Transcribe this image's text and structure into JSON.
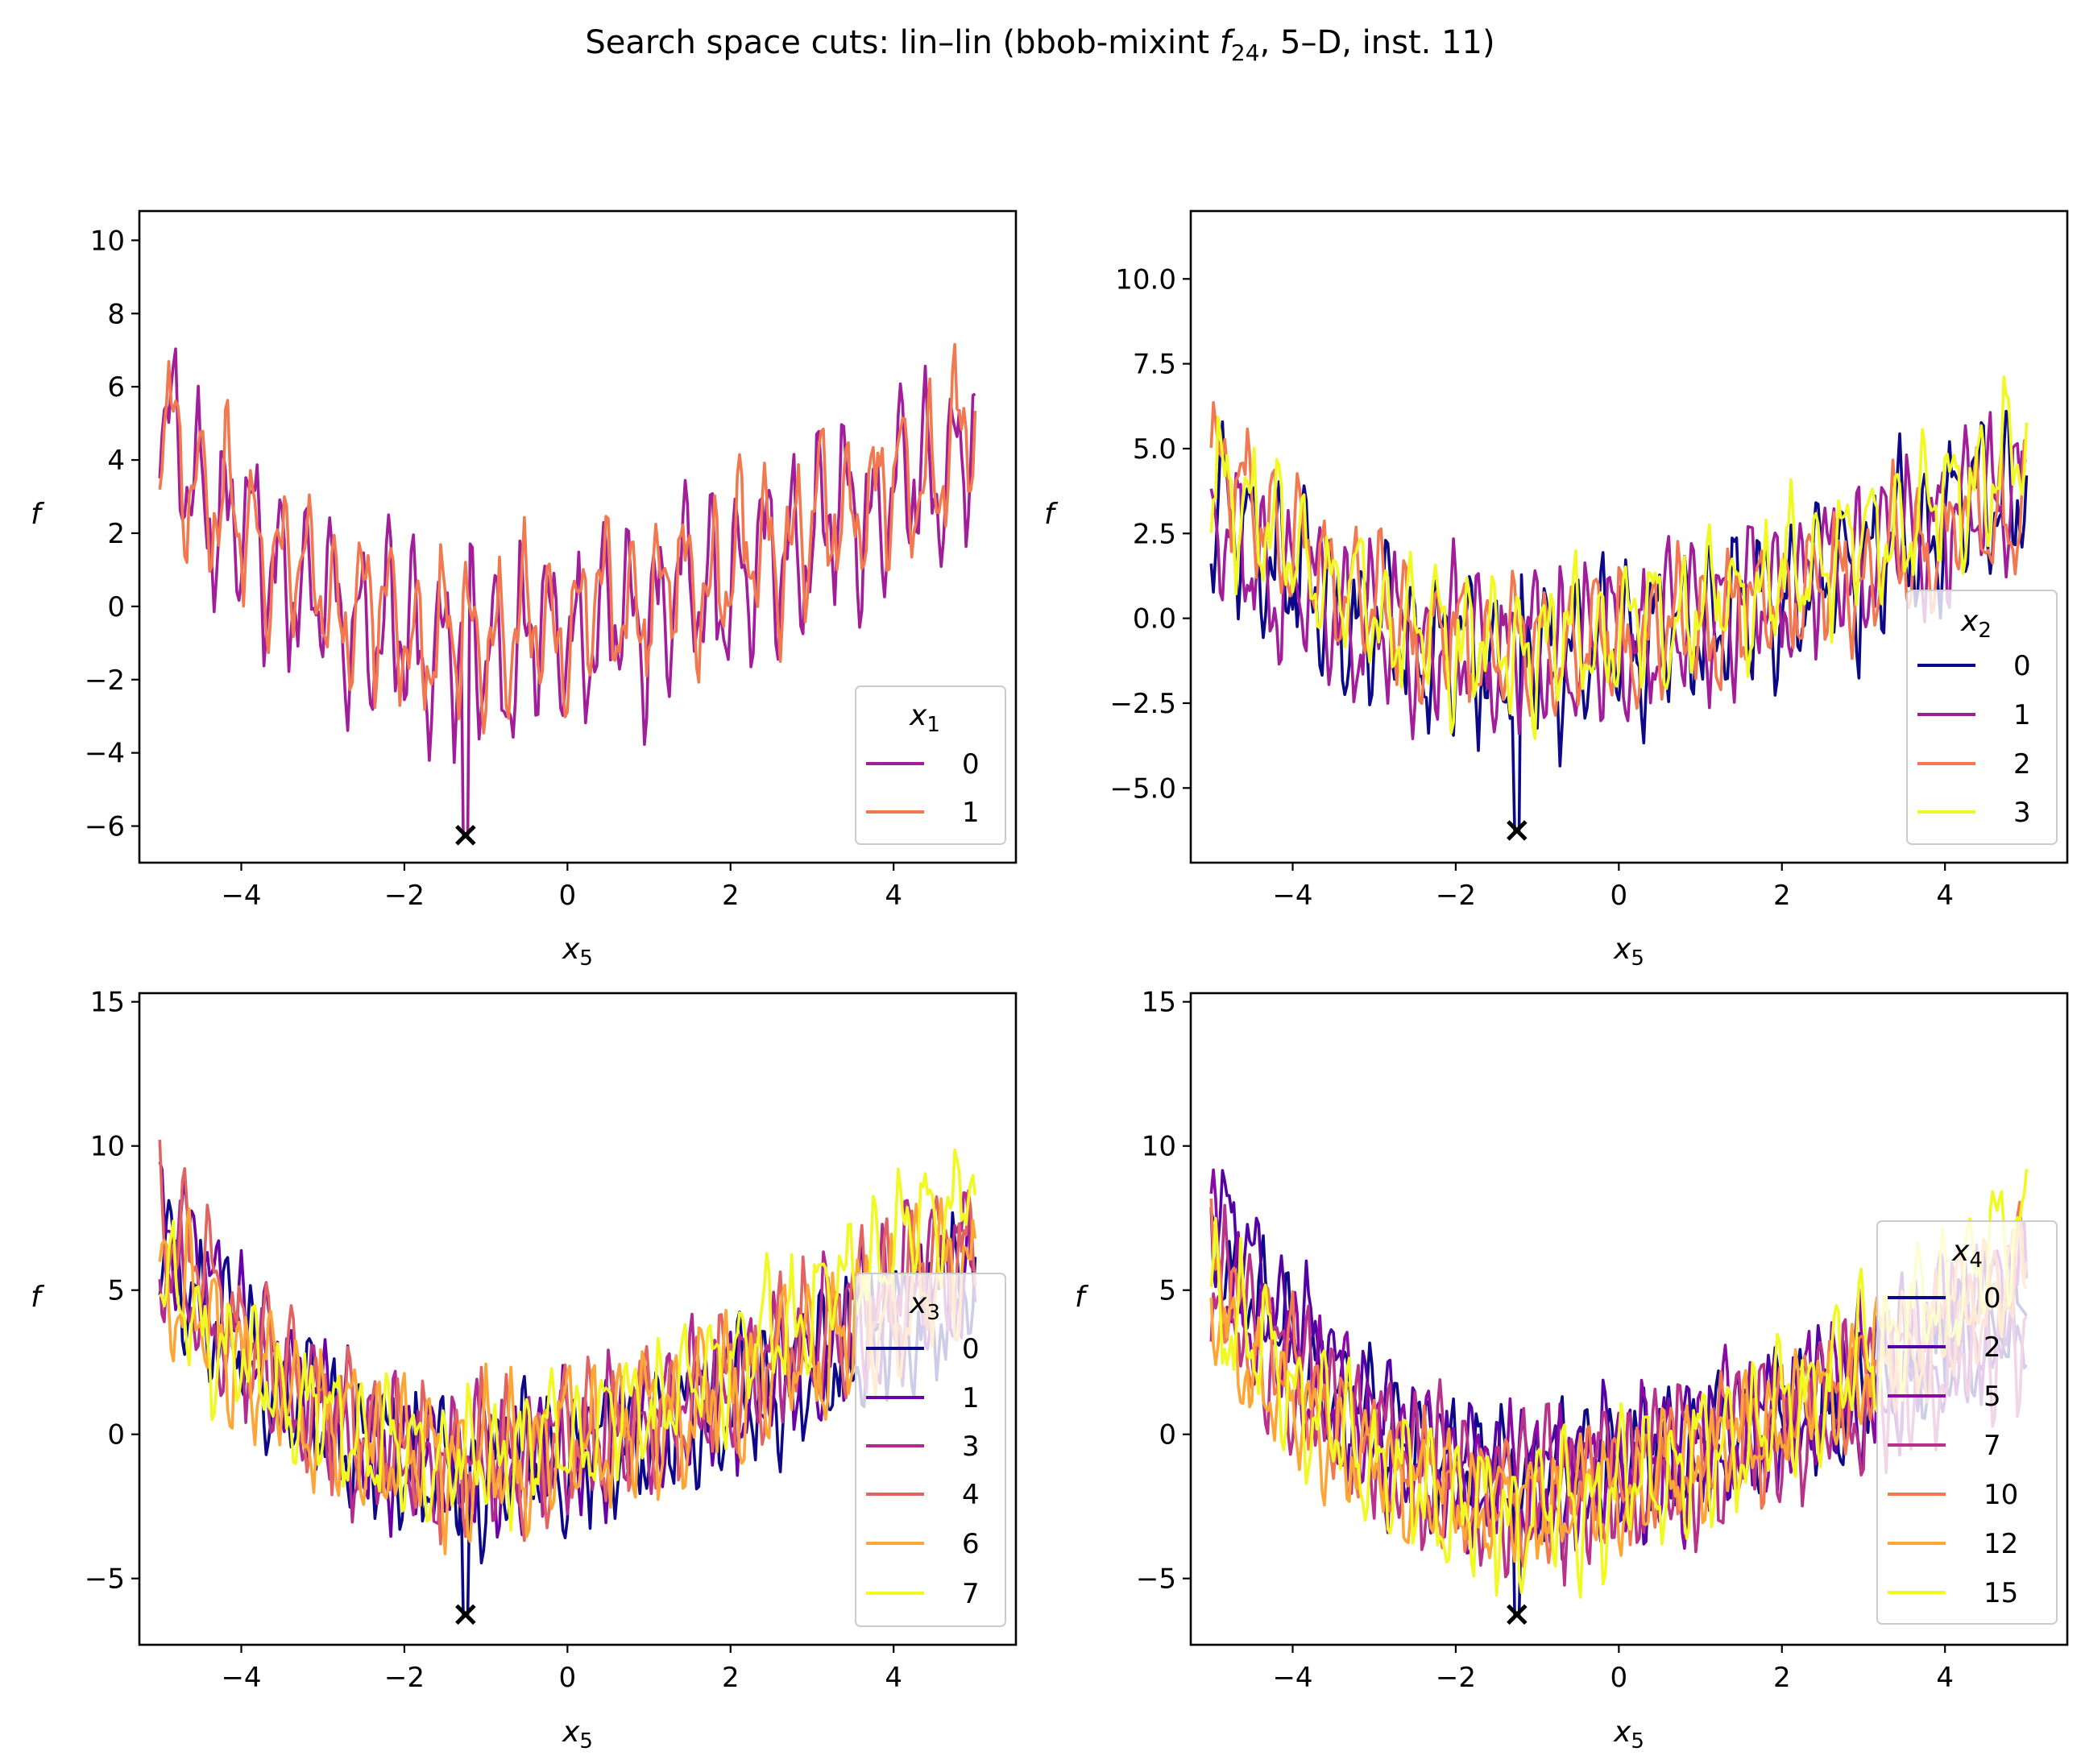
{
  "title": {
    "main": "Search space cuts: lin–lin (bbob-mixint ",
    "f_base": "f",
    "f_sub": "24",
    "rest": ", 5–D, inst. 11)"
  },
  "chart_data": [
    {
      "type": "line",
      "xlabel": "x5",
      "xlabel_base": "x",
      "xlabel_sub": "5",
      "ylabel": "f",
      "xlim": [
        -5.25,
        5.5
      ],
      "ylim": [
        -7.0,
        10.8
      ],
      "xticks": [
        -4,
        -2,
        0,
        2,
        4
      ],
      "yticks": [
        -6,
        -4,
        -2,
        0,
        2,
        4,
        6,
        8,
        10
      ],
      "legend_title": "x1",
      "legend_title_base": "x",
      "legend_title_sub": "1",
      "legend_loc": "lower right",
      "marker": {
        "x": -1.25,
        "y": -6.25,
        "symbol": "x"
      },
      "series": [
        {
          "name": "0",
          "color": "#a21d9a"
        },
        {
          "name": "1",
          "color": "#f1784f"
        }
      ]
    },
    {
      "type": "line",
      "xlabel": "x5",
      "xlabel_base": "x",
      "xlabel_sub": "5",
      "ylabel": "f",
      "xlim": [
        -5.25,
        5.5
      ],
      "ylim": [
        -7.2,
        12.0
      ],
      "xticks": [
        -4,
        -2,
        0,
        2,
        4
      ],
      "yticks": [
        -5.0,
        -2.5,
        0.0,
        2.5,
        5.0,
        7.5,
        10.0
      ],
      "legend_title": "x2",
      "legend_title_base": "x",
      "legend_title_sub": "2",
      "legend_loc": "lower right",
      "marker": {
        "x": -1.25,
        "y": -6.25,
        "symbol": "x"
      },
      "series": [
        {
          "name": "0",
          "color": "#0d0887"
        },
        {
          "name": "1",
          "color": "#a21d9a"
        },
        {
          "name": "2",
          "color": "#f1784f"
        },
        {
          "name": "3",
          "color": "#f0f921"
        }
      ]
    },
    {
      "type": "line",
      "xlabel": "x5",
      "xlabel_base": "x",
      "xlabel_sub": "5",
      "ylabel": "f",
      "xlim": [
        -5.25,
        5.5
      ],
      "ylim": [
        -7.3,
        15.3
      ],
      "xticks": [
        -4,
        -2,
        0,
        2,
        4
      ],
      "yticks": [
        -5,
        0,
        5,
        10,
        15
      ],
      "legend_title": "x3",
      "legend_title_base": "x",
      "legend_title_sub": "3",
      "legend_loc": "lower right",
      "marker": {
        "x": -1.25,
        "y": -6.25,
        "symbol": "x"
      },
      "series": [
        {
          "name": "0",
          "color": "#0d0887"
        },
        {
          "name": "1",
          "color": "#6a00a8"
        },
        {
          "name": "3",
          "color": "#b12a90"
        },
        {
          "name": "4",
          "color": "#e16462"
        },
        {
          "name": "6",
          "color": "#fca636"
        },
        {
          "name": "7",
          "color": "#f0f921"
        }
      ]
    },
    {
      "type": "line",
      "xlabel": "x5",
      "xlabel_base": "x",
      "xlabel_sub": "5",
      "ylabel": "f",
      "xlim": [
        -5.25,
        5.5
      ],
      "ylim": [
        -7.3,
        15.3
      ],
      "xticks": [
        -4,
        -2,
        0,
        2,
        4
      ],
      "yticks": [
        -5,
        0,
        5,
        10,
        15
      ],
      "legend_title": "x4",
      "legend_title_base": "x",
      "legend_title_sub": "4",
      "legend_loc": "right",
      "marker": {
        "x": -1.25,
        "y": -6.25,
        "symbol": "x"
      },
      "series": [
        {
          "name": "0",
          "color": "#0d0887"
        },
        {
          "name": "2",
          "color": "#5302a3"
        },
        {
          "name": "5",
          "color": "#8b0aa5"
        },
        {
          "name": "7",
          "color": "#b83289"
        },
        {
          "name": "10",
          "color": "#f1784f"
        },
        {
          "name": "12",
          "color": "#fca636"
        },
        {
          "name": "15",
          "color": "#f0f921"
        }
      ]
    }
  ]
}
